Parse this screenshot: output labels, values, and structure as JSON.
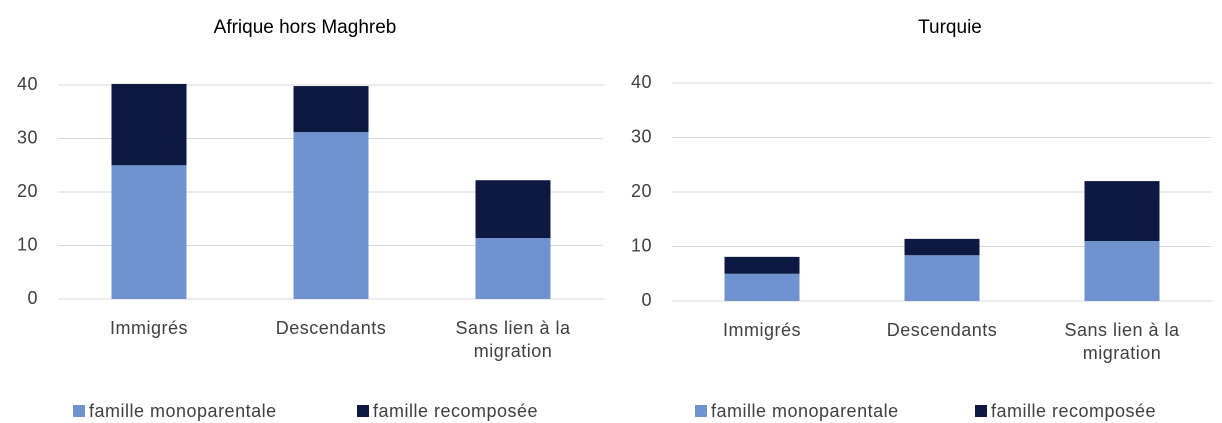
{
  "chart_data": [
    {
      "type": "bar",
      "stacked": true,
      "title": "Afrique hors Maghreb",
      "categories": [
        "Immigrés",
        "Descendants",
        "Sans lien à la migration"
      ],
      "series": [
        {
          "name": "famille monoparentale",
          "color": "#7092cf",
          "values": [
            25,
            31.2,
            11.4
          ]
        },
        {
          "name": "famille recomposée",
          "color": "#0d1940",
          "values": [
            15.2,
            8.6,
            10.8
          ]
        }
      ],
      "ylim": [
        0,
        40
      ],
      "yticks": [
        0,
        10,
        20,
        30,
        40
      ],
      "grid": true,
      "legend": "bottom"
    },
    {
      "type": "bar",
      "stacked": true,
      "title": "Turquie",
      "categories": [
        "Immigrés",
        "Descendants",
        "Sans lien à la migration"
      ],
      "series": [
        {
          "name": "famille monoparentale",
          "color": "#7092cf",
          "values": [
            5,
            8.4,
            11
          ]
        },
        {
          "name": "famille recomposée",
          "color": "#0d1940",
          "values": [
            3.1,
            3,
            11
          ]
        }
      ],
      "ylim": [
        0,
        40
      ],
      "yticks": [
        0,
        10,
        20,
        30,
        40
      ],
      "grid": true,
      "legend": "bottom"
    }
  ]
}
